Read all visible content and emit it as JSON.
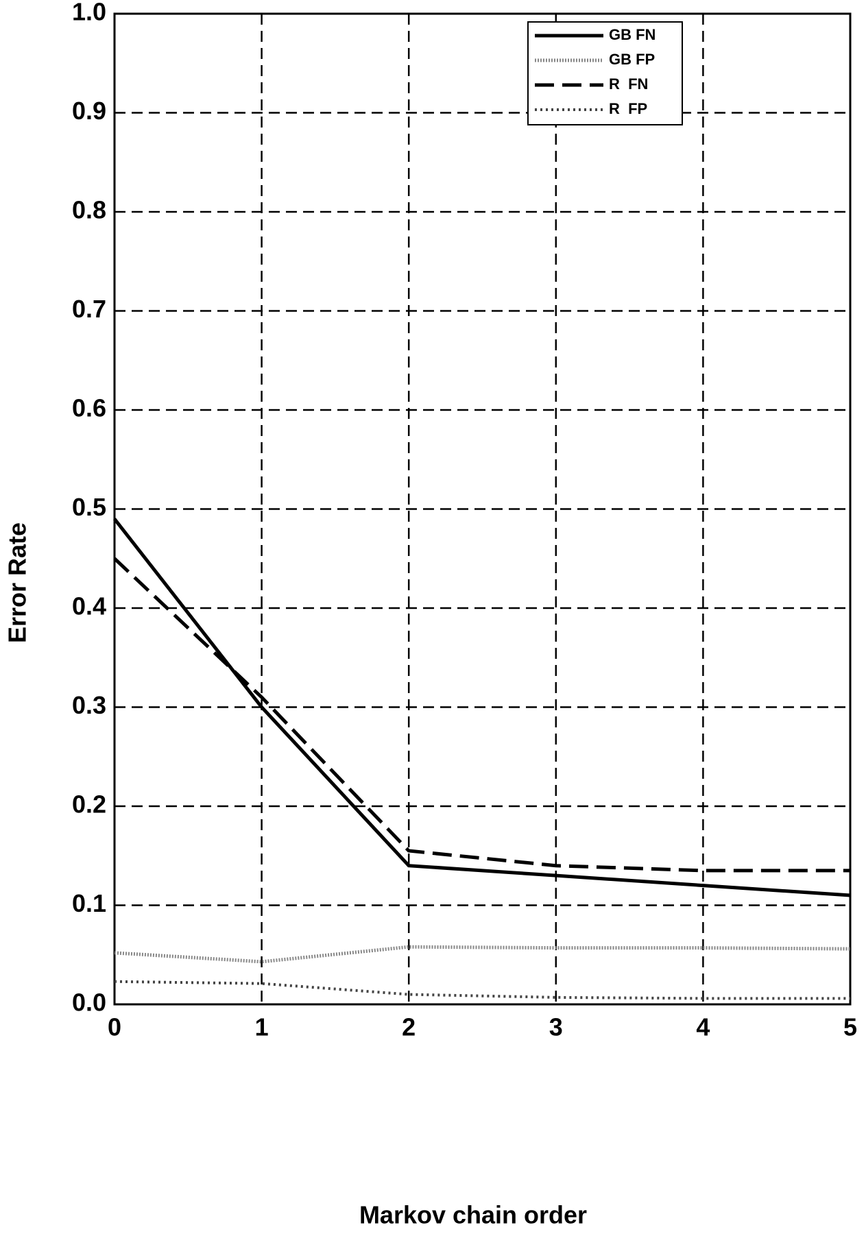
{
  "chart_data": {
    "type": "line",
    "xlabel": "Markov chain order",
    "ylabel": "Error Rate",
    "x": [
      0,
      1,
      2,
      3,
      4,
      5
    ],
    "xlim": [
      0,
      5
    ],
    "xticks": [
      0,
      1,
      2,
      3,
      4,
      5
    ],
    "ylim": [
      0,
      1
    ],
    "yticks": [
      {
        "value": 0,
        "label": "0.0"
      },
      0.1,
      0.2,
      0.3,
      0.4,
      0.5,
      0.6,
      0.7,
      0.8,
      0.9,
      {
        "value": 1,
        "label": "1.0"
      }
    ],
    "grid": true,
    "legend": "upper right",
    "series": [
      {
        "name": "GB FN",
        "color": "#000000",
        "style": "solid",
        "values": [
          0.49,
          0.3,
          0.14,
          0.13,
          0.12,
          0.11
        ]
      },
      {
        "name": "GB FP",
        "color": "#888888",
        "style": "dense-dotted",
        "values": [
          0.052,
          0.043,
          0.058,
          0.057,
          0.057,
          0.056
        ]
      },
      {
        "name": "R  FN",
        "color": "#000000",
        "style": "dashed",
        "values": [
          0.45,
          0.31,
          0.155,
          0.14,
          0.135,
          0.135
        ]
      },
      {
        "name": "R  FP",
        "color": "#444444",
        "style": "dotted",
        "values": [
          0.023,
          0.021,
          0.01,
          0.007,
          0.006,
          0.006
        ]
      }
    ]
  }
}
